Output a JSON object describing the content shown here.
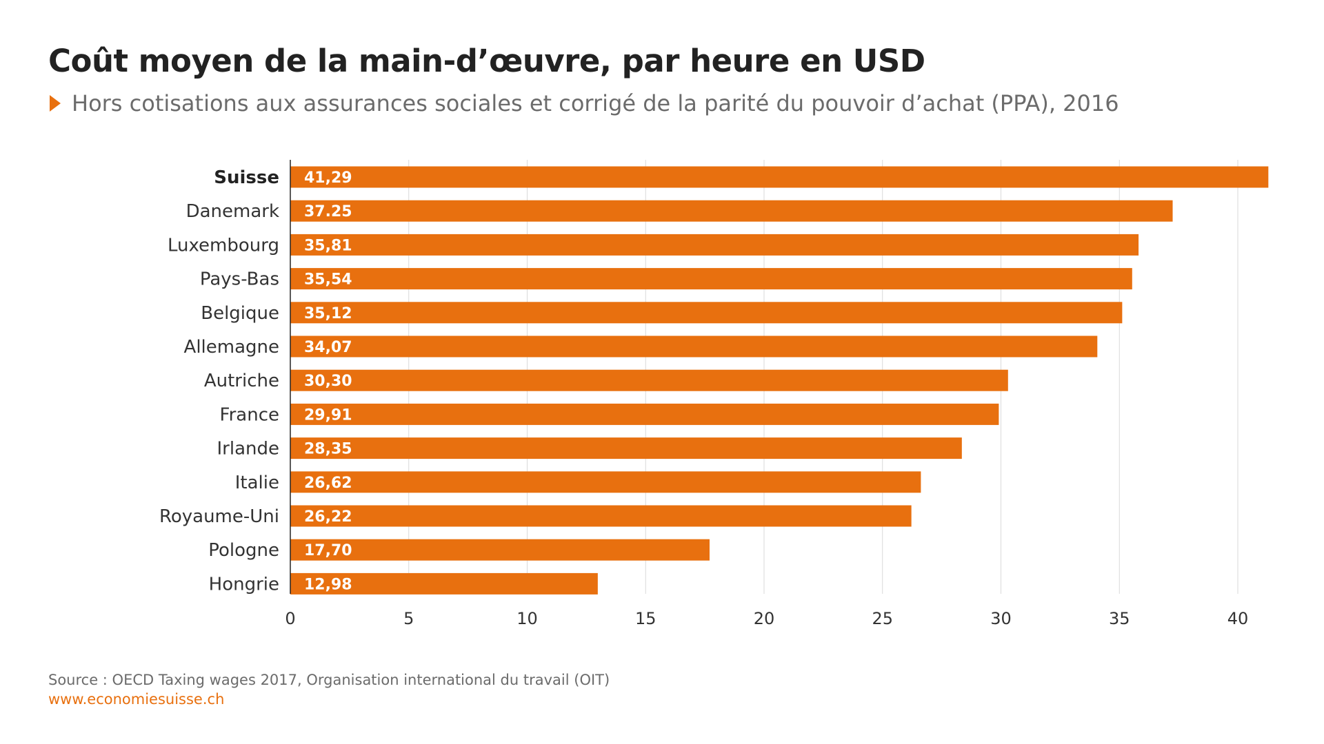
{
  "title": "Coût moyen de la main-d’œuvre, par heure en USD",
  "subtitle": "Hors cotisations aux assurances sociales et corrigé de la parité du pouvoir d’achat (PPA), 2016",
  "source": "Source : OECD Taxing wages 2017, Organisation international du travail (OIT)",
  "url": "www.economiesuisse.ch",
  "colors": {
    "bar": "#e8700f",
    "accent": "#e8700f",
    "grid": "#d9d9d9"
  },
  "chart_data": {
    "type": "bar",
    "orientation": "horizontal",
    "categories": [
      "Suisse",
      "Danemark",
      "Luxembourg",
      "Pays-Bas",
      "Belgique",
      "Allemagne",
      "Autriche",
      "France",
      "Irlande",
      "Italie",
      "Royaume-Uni",
      "Pologne",
      "Hongrie"
    ],
    "values": [
      41.29,
      37.25,
      35.81,
      35.54,
      35.12,
      34.07,
      30.3,
      29.91,
      28.35,
      26.62,
      26.22,
      17.7,
      12.98
    ],
    "value_labels": [
      "41,29",
      "37.25",
      "35,81",
      "35,54",
      "35,12",
      "34,07",
      "30,30",
      "29,91",
      "28,35",
      "26,62",
      "26,22",
      "17,70",
      "12,98"
    ],
    "highlight_category": "Suisse",
    "xlim": [
      0,
      42
    ],
    "xticks": [
      0,
      5,
      10,
      15,
      20,
      25,
      30,
      35,
      40
    ],
    "grid": "vertical",
    "legend": "none"
  }
}
